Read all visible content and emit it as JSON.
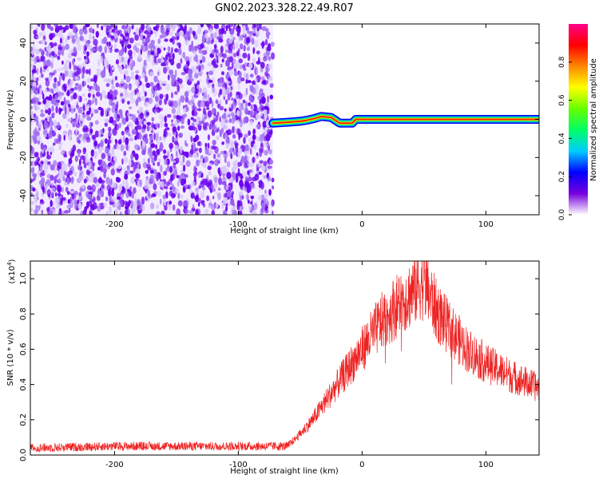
{
  "title": "GN02.2023.328.22.49.R07",
  "colors": {
    "line": "#ee2222",
    "spectral_low": "#f3ecff",
    "spectral_mid": "#6a00ee",
    "colormap": [
      "#ffffff",
      "#7700dd",
      "#0000ff",
      "#00ccff",
      "#00ff66",
      "#66ff00",
      "#ffff00",
      "#ff8800",
      "#ff0000",
      "#ff0088"
    ]
  },
  "chart_data": [
    {
      "type": "heatmap",
      "xlabel": "Height of straight line (km)",
      "ylabel": "Frequency (Hz)",
      "xlim": [
        -268,
        143
      ],
      "ylim": [
        -50,
        50
      ],
      "x_ticks": [
        {
          "v": -200,
          "label": "-200"
        },
        {
          "v": -100,
          "label": "-100"
        },
        {
          "v": 0,
          "label": "0"
        },
        {
          "v": 100,
          "label": "100"
        }
      ],
      "y_ticks": [
        {
          "v": -40,
          "label": "-40"
        },
        {
          "v": -20,
          "label": "-20"
        },
        {
          "v": 0,
          "label": "0"
        },
        {
          "v": 20,
          "label": "20"
        },
        {
          "v": 40,
          "label": "40"
        }
      ],
      "noise_region_x": [
        -268,
        -72
      ],
      "ridge": [
        {
          "x": -72,
          "f": -2.0
        },
        {
          "x": -60,
          "f": -1.5
        },
        {
          "x": -50,
          "f": -1.0
        },
        {
          "x": -45,
          "f": -0.5
        },
        {
          "x": -38,
          "f": 0.5
        },
        {
          "x": -33,
          "f": 1.5
        },
        {
          "x": -25,
          "f": 1.0
        },
        {
          "x": -18,
          "f": -2.0
        },
        {
          "x": -8,
          "f": -2.0
        },
        {
          "x": -5,
          "f": 0.0
        },
        {
          "x": 143,
          "f": 0.0
        }
      ],
      "colorbar": {
        "label": "Normalized spectral amplitude",
        "range": [
          0,
          1
        ],
        "ticks": [
          {
            "v": 0.0,
            "label": "0.0"
          },
          {
            "v": 0.2,
            "label": "0.2"
          },
          {
            "v": 0.4,
            "label": "0.4"
          },
          {
            "v": 0.6,
            "label": "0.6"
          },
          {
            "v": 0.8,
            "label": "0.8"
          }
        ]
      }
    },
    {
      "type": "line",
      "xlabel": "Height of straight line (km)",
      "ylabel": "SNR (10 * v/v)",
      "scale_label": "(x10",
      "scale_exp": "4",
      "scale_close": ")",
      "xlim": [
        -268,
        143
      ],
      "ylim": [
        0,
        1.1
      ],
      "x_ticks": [
        {
          "v": -200,
          "label": "-200"
        },
        {
          "v": -100,
          "label": "-100"
        },
        {
          "v": 0,
          "label": "0"
        },
        {
          "v": 100,
          "label": "100"
        }
      ],
      "y_ticks": [
        {
          "v": 0.0,
          "label": "0.0"
        },
        {
          "v": 0.2,
          "label": "0.2"
        },
        {
          "v": 0.4,
          "label": "0.4"
        },
        {
          "v": 0.6,
          "label": "0.6"
        },
        {
          "v": 0.8,
          "label": "0.8"
        },
        {
          "v": 1.0,
          "label": "1.0"
        }
      ],
      "envelope": [
        {
          "x": -268,
          "y": 0.04
        },
        {
          "x": -200,
          "y": 0.05
        },
        {
          "x": -120,
          "y": 0.05
        },
        {
          "x": -60,
          "y": 0.05
        },
        {
          "x": -50,
          "y": 0.12
        },
        {
          "x": -40,
          "y": 0.2
        },
        {
          "x": -30,
          "y": 0.3
        },
        {
          "x": -15,
          "y": 0.45
        },
        {
          "x": 0,
          "y": 0.6
        },
        {
          "x": 15,
          "y": 0.75
        },
        {
          "x": 30,
          "y": 0.86
        },
        {
          "x": 40,
          "y": 0.92
        },
        {
          "x": 48,
          "y": 0.98
        },
        {
          "x": 52,
          "y": 0.95
        },
        {
          "x": 60,
          "y": 0.82
        },
        {
          "x": 70,
          "y": 0.72
        },
        {
          "x": 85,
          "y": 0.6
        },
        {
          "x": 100,
          "y": 0.52
        },
        {
          "x": 120,
          "y": 0.45
        },
        {
          "x": 143,
          "y": 0.38
        }
      ]
    }
  ]
}
